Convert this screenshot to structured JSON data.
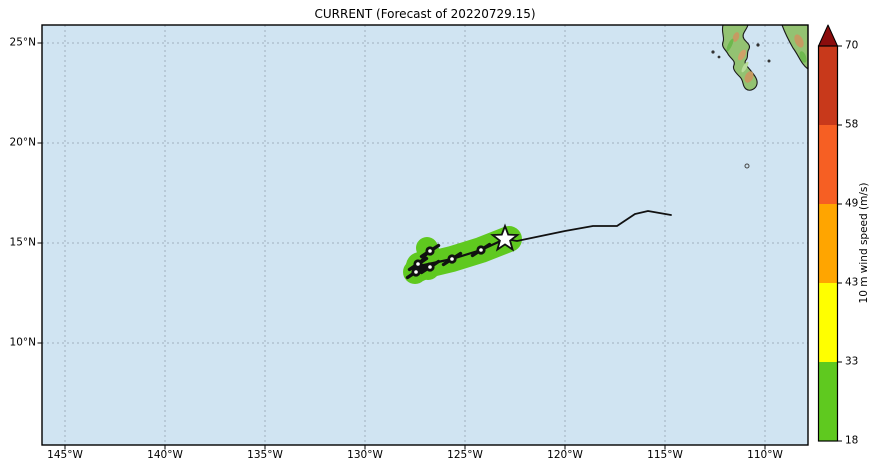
{
  "title": "CURRENT (Forecast of 20220729.15)",
  "axes": {
    "x_ticks": [
      {
        "label": "145°W",
        "lon": 145
      },
      {
        "label": "140°W",
        "lon": 140
      },
      {
        "label": "135°W",
        "lon": 135
      },
      {
        "label": "130°W",
        "lon": 130
      },
      {
        "label": "125°W",
        "lon": 125
      },
      {
        "label": "120°W",
        "lon": 120
      },
      {
        "label": "115°W",
        "lon": 115
      },
      {
        "label": "110°W",
        "lon": 110
      }
    ],
    "y_ticks": [
      {
        "label": "25°N",
        "lat": 25
      },
      {
        "label": "20°N",
        "lat": 20
      },
      {
        "label": "15°N",
        "lat": 15
      },
      {
        "label": "10°N",
        "lat": 10
      }
    ]
  },
  "map": {
    "ocean_color": "#d0e4f2",
    "grid_color": "#9fb0bf",
    "border_color": "#000000",
    "land_fill": "#93c272",
    "land_outline": "#1a1a1a"
  },
  "colorbar": {
    "label": "10 m wind speed (m/s)",
    "tick_labels_top_to_bottom": [
      "70",
      "58",
      "49",
      "43",
      "33",
      "18"
    ],
    "segments_bottom_to_top": [
      {
        "from": 18,
        "to": 33,
        "color": "#5fc91f"
      },
      {
        "from": 33,
        "to": 43,
        "color": "#ffff00"
      },
      {
        "from": 43,
        "to": 49,
        "color": "#ffa500"
      },
      {
        "from": 49,
        "to": 58,
        "color": "#f65f23"
      },
      {
        "from": 58,
        "to": 70,
        "color": "#c8391b"
      }
    ],
    "over_arrow_color": "#8b0d0d"
  },
  "chart_data": {
    "type": "forecast-track-map",
    "title": "CURRENT (Forecast of 20220729.15)",
    "lon_range_w": [
      147.15,
      108.85
    ],
    "lat_range_n": [
      7.9,
      25.9
    ],
    "current_position": {
      "marker": "star",
      "lon_w": 123.0,
      "lat_n": 15.2
    },
    "past_track_lon_lat_w_n": [
      [
        123.0,
        15.2
      ],
      [
        122.4,
        15.1
      ],
      [
        120.0,
        15.6
      ],
      [
        118.6,
        15.85
      ],
      [
        117.4,
        15.85
      ],
      [
        116.5,
        16.45
      ],
      [
        115.85,
        16.6
      ],
      [
        114.7,
        16.4
      ]
    ],
    "forecast_track_lon_lat_w_n": [
      [
        123.0,
        15.2
      ],
      [
        124.2,
        14.65
      ],
      [
        125.65,
        14.2
      ],
      [
        127.3,
        13.85
      ]
    ],
    "forecast_marker_points": [
      [
        124.2,
        14.65
      ],
      [
        125.65,
        14.2
      ]
    ],
    "cluster_segments": [
      [
        [
          126.75,
          14.6
        ],
        [
          127.35,
          13.95
        ]
      ],
      [
        [
          126.75,
          13.8
        ],
        [
          127.45,
          13.55
        ]
      ]
    ],
    "cone": {
      "wind_category_m_s": "18-33",
      "color": "#5fc91f",
      "width_deg": 1.3,
      "spine": [
        [
          122.8,
          15.2
        ],
        [
          124.2,
          14.65
        ],
        [
          125.65,
          14.2
        ],
        [
          126.9,
          13.9
        ],
        [
          127.35,
          13.7
        ]
      ],
      "blobs_lon_lat_rdeg": [
        [
          126.9,
          14.75,
          0.55
        ],
        [
          126.8,
          14.4,
          0.6
        ],
        [
          127.25,
          13.85,
          0.7
        ],
        [
          126.85,
          13.75,
          0.6
        ],
        [
          127.5,
          13.55,
          0.6
        ]
      ]
    },
    "colors": {
      "track": "#111111",
      "marker": "#111111",
      "star_fill": "#ffffff",
      "star_outline": "#111111"
    }
  }
}
